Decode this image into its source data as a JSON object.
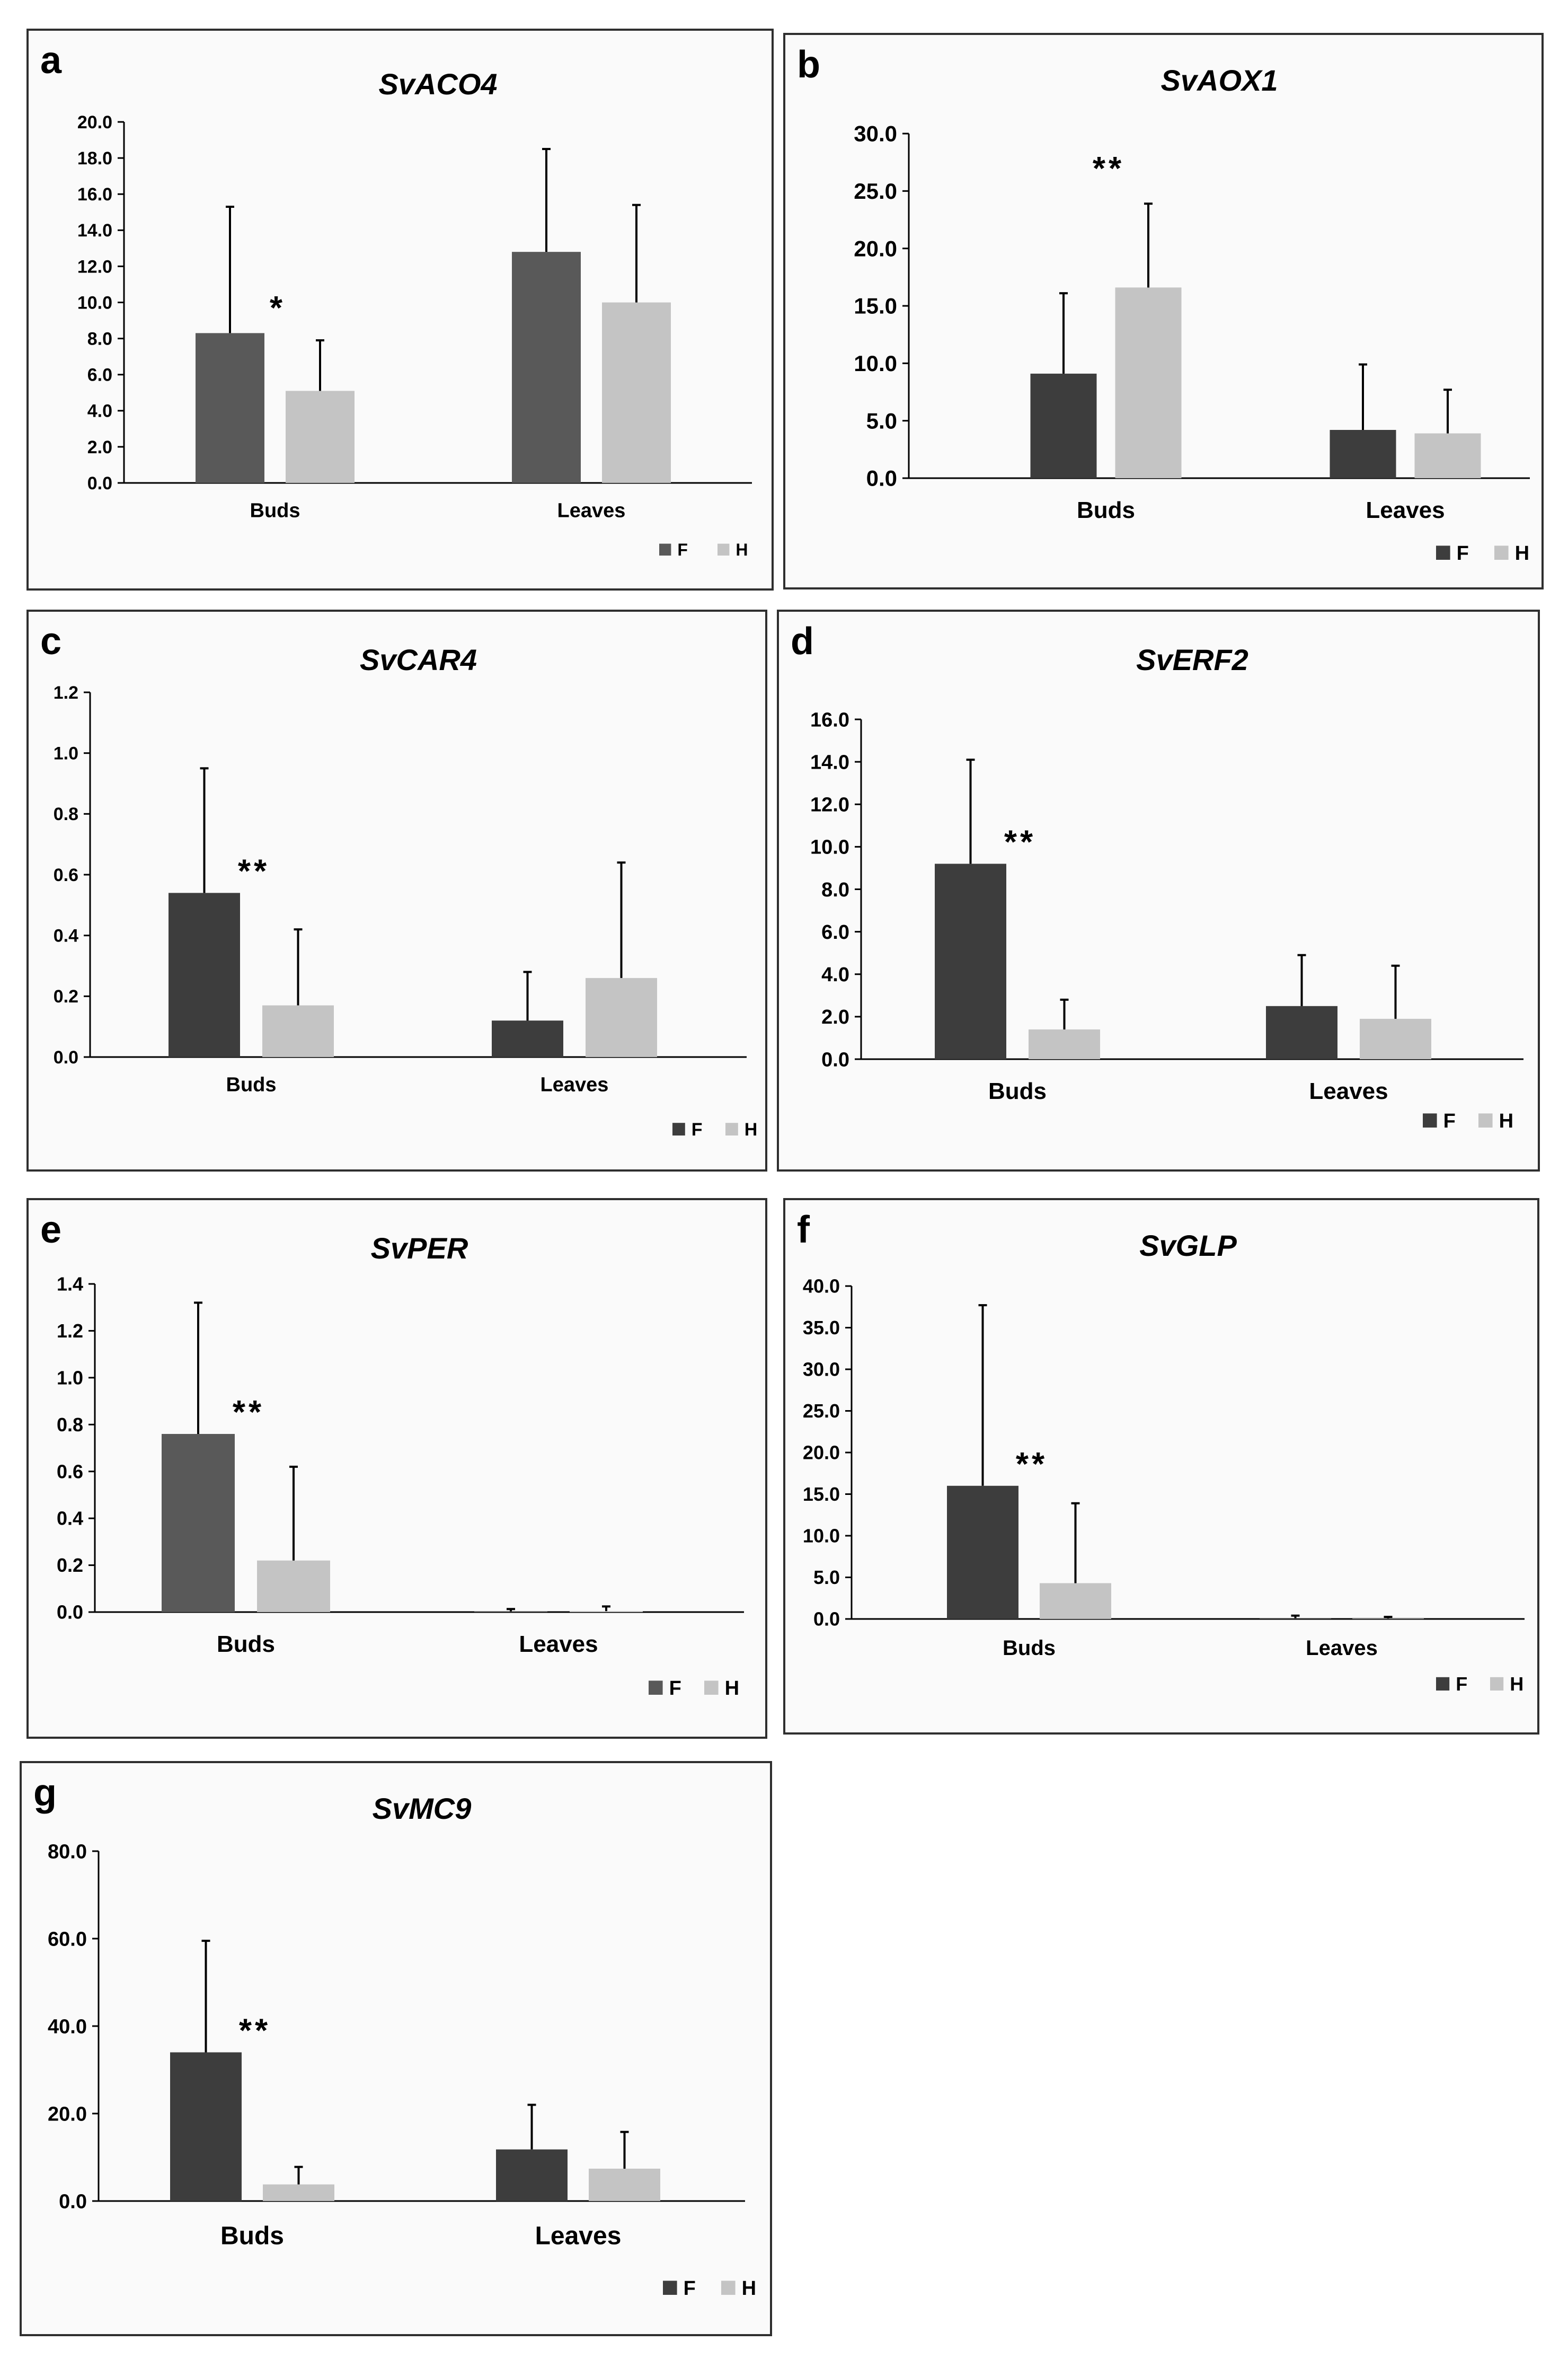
{
  "colors": {
    "F": "#3d3d3d",
    "F_alt": "#595959",
    "H": "#c4c4c4",
    "axis": "#000000",
    "panel_border": "#2f2f2f",
    "panel_bg": "#fafafa"
  },
  "chart_data": [
    {
      "letter": "a",
      "type": "bar",
      "title": "SvACO4",
      "categories": [
        "Buds",
        "Leaves"
      ],
      "series": [
        {
          "name": "F",
          "values": [
            8.3,
            12.8
          ],
          "errors": [
            7.0,
            5.7
          ]
        },
        {
          "name": "H",
          "values": [
            5.1,
            10.0
          ],
          "errors": [
            2.8,
            5.4
          ]
        }
      ],
      "ylim": [
        0,
        20
      ],
      "yticks": [
        "0.0",
        "2.0",
        "4.0",
        "6.0",
        "8.0",
        "10.0",
        "12.0",
        "14.0",
        "16.0",
        "18.0",
        "20.0"
      ],
      "significance": [
        "*",
        ""
      ],
      "legend": [
        "F",
        "H"
      ],
      "legend_position": "bottom-right"
    },
    {
      "letter": "b",
      "type": "bar",
      "title": "SvAOX1",
      "categories": [
        "Buds",
        "Leaves"
      ],
      "series": [
        {
          "name": "F",
          "values": [
            9.1,
            4.2
          ],
          "errors": [
            7.0,
            5.7
          ]
        },
        {
          "name": "H",
          "values": [
            16.6,
            3.9
          ],
          "errors": [
            7.3,
            3.8
          ]
        }
      ],
      "ylim": [
        0,
        30
      ],
      "yticks": [
        "0.0",
        "5.0",
        "10.0",
        "15.0",
        "20.0",
        "25.0",
        "30.0"
      ],
      "significance": [
        "**",
        ""
      ],
      "legend": [
        "F",
        "H"
      ],
      "legend_position": "bottom-right"
    },
    {
      "letter": "c",
      "type": "bar",
      "title": "SvCAR4",
      "categories": [
        "Buds",
        "Leaves"
      ],
      "series": [
        {
          "name": "F",
          "values": [
            0.54,
            0.12
          ],
          "errors": [
            0.41,
            0.16
          ]
        },
        {
          "name": "H",
          "values": [
            0.17,
            0.26
          ],
          "errors": [
            0.25,
            0.38
          ]
        }
      ],
      "ylim": [
        0,
        1.2
      ],
      "yticks": [
        "0.0",
        "0.2",
        "0.4",
        "0.6",
        "0.8",
        "1.0",
        "1.2"
      ],
      "significance": [
        "**",
        ""
      ],
      "legend": [
        "F",
        "H"
      ],
      "legend_position": "bottom-right"
    },
    {
      "letter": "d",
      "type": "bar",
      "title": "SvERF2",
      "categories": [
        "Buds",
        "Leaves"
      ],
      "series": [
        {
          "name": "F",
          "values": [
            9.2,
            2.5
          ],
          "errors": [
            4.9,
            2.4
          ]
        },
        {
          "name": "H",
          "values": [
            1.4,
            1.9
          ],
          "errors": [
            1.4,
            2.5
          ]
        }
      ],
      "ylim": [
        0,
        16
      ],
      "yticks": [
        "0.0",
        "2.0",
        "4.0",
        "6.0",
        "8.0",
        "10.0",
        "12.0",
        "14.0",
        "16.0"
      ],
      "significance": [
        "**",
        ""
      ],
      "legend": [
        "F",
        "H"
      ],
      "legend_position": "bottom-right"
    },
    {
      "letter": "e",
      "type": "bar",
      "title": "SvPER",
      "categories": [
        "Buds",
        "Leaves"
      ],
      "series": [
        {
          "name": "F",
          "values": [
            0.76,
            0.003
          ],
          "errors": [
            0.56,
            0.01
          ]
        },
        {
          "name": "H",
          "values": [
            0.22,
            0.004
          ],
          "errors": [
            0.4,
            0.02
          ]
        }
      ],
      "ylim": [
        0,
        1.4
      ],
      "yticks": [
        "0.0",
        "0.2",
        "0.4",
        "0.6",
        "0.8",
        "1.0",
        "1.2",
        "1.4"
      ],
      "significance": [
        "**",
        ""
      ],
      "legend": [
        "F",
        "H"
      ],
      "legend_position": "bottom-right"
    },
    {
      "letter": "f",
      "type": "bar",
      "title": "SvGLP",
      "categories": [
        "Buds",
        "Leaves"
      ],
      "series": [
        {
          "name": "F",
          "values": [
            16.0,
            0.1
          ],
          "errors": [
            21.7,
            0.3
          ]
        },
        {
          "name": "H",
          "values": [
            4.3,
            0.05
          ],
          "errors": [
            9.6,
            0.2
          ]
        }
      ],
      "ylim": [
        0,
        40
      ],
      "yticks": [
        "0.0",
        "5.0",
        "10.0",
        "15.0",
        "20.0",
        "25.0",
        "30.0",
        "35.0",
        "40.0"
      ],
      "significance": [
        "**",
        ""
      ],
      "legend": [
        "F",
        "H"
      ],
      "legend_position": "bottom-right"
    },
    {
      "letter": "g",
      "type": "bar",
      "title": "SvMC9",
      "categories": [
        "Buds",
        "Leaves"
      ],
      "series": [
        {
          "name": "F",
          "values": [
            34.0,
            11.8
          ],
          "errors": [
            25.5,
            10.2
          ]
        },
        {
          "name": "H",
          "values": [
            3.8,
            7.4
          ],
          "errors": [
            4.0,
            8.4
          ]
        }
      ],
      "ylim": [
        0,
        80
      ],
      "yticks": [
        "0.0",
        "20.0",
        "40.0",
        "60.0",
        "80.0"
      ],
      "significance": [
        "**",
        ""
      ],
      "legend": [
        "F",
        "H"
      ],
      "legend_position": "bottom-right"
    }
  ]
}
